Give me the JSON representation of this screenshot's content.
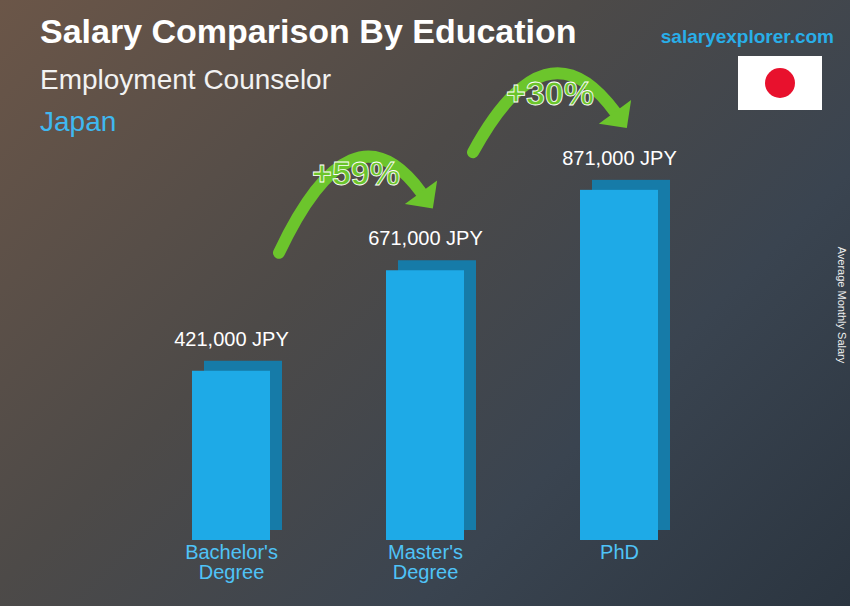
{
  "chart_data": {
    "type": "bar",
    "title": "Salary Comparison By Education",
    "subtitle": "Employment Counselor",
    "country": "Japan",
    "source": "salaryexplorer.com",
    "y_label": "Average Monthly Salary",
    "categories": [
      "Bachelor's Degree",
      "Master's Degree",
      "PhD"
    ],
    "values": [
      421000,
      671000,
      871000
    ],
    "value_labels": [
      "421,000 JPY",
      "671,000 JPY",
      "871,000 JPY"
    ],
    "data_labels": true,
    "color": "#1eaae7",
    "ylim": [
      0,
      1000000
    ],
    "tick_labels": "x",
    "annotations": [
      {
        "text": "+59%",
        "from": "Bachelor's Degree",
        "to": "Master's Degree"
      },
      {
        "text": "+30%",
        "from": "Master's Degree",
        "to": "PhD"
      }
    ]
  }
}
